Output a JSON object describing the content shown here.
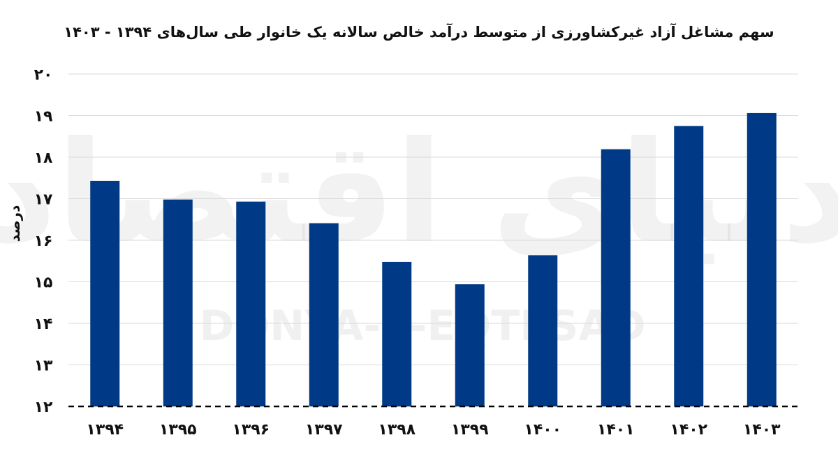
{
  "chart_data": {
    "type": "bar",
    "title": "سهم مشاغل آزاد غیرکشاورزی از متوسط درآمد خالص سالانه یک خانوار  طی سال‌های ۱۳۹۴ - ۱۴۰۳",
    "xlabel": "",
    "ylabel": "درصد",
    "categories": [
      "۱۳۹۴",
      "۱۳۹۵",
      "۱۳۹۶",
      "۱۳۹۷",
      "۱۳۹۸",
      "۱۳۹۹",
      "۱۴۰۰",
      "۱۴۰۱",
      "۱۴۰۲",
      "۱۴۰۳"
    ],
    "values": [
      17.43,
      16.98,
      16.93,
      16.41,
      15.48,
      14.94,
      15.64,
      18.19,
      18.75,
      19.06
    ],
    "ylim": [
      12,
      20
    ],
    "yticks": [
      12,
      13,
      14,
      15,
      16,
      17,
      18,
      19,
      20
    ],
    "ytick_labels": [
      "۱۲",
      "۱۳",
      "۱۴",
      "۱۵",
      "۱۶",
      "۱۷",
      "۱۸",
      "۱۹",
      "۲۰"
    ],
    "grid": true,
    "baseline_style": "dashed",
    "bar_color": "#003A86",
    "grid_color": "#DADADA",
    "watermark": {
      "logo_text": "دنیای اقتصاد",
      "text": "DONYA-E-EQTESAD"
    }
  }
}
